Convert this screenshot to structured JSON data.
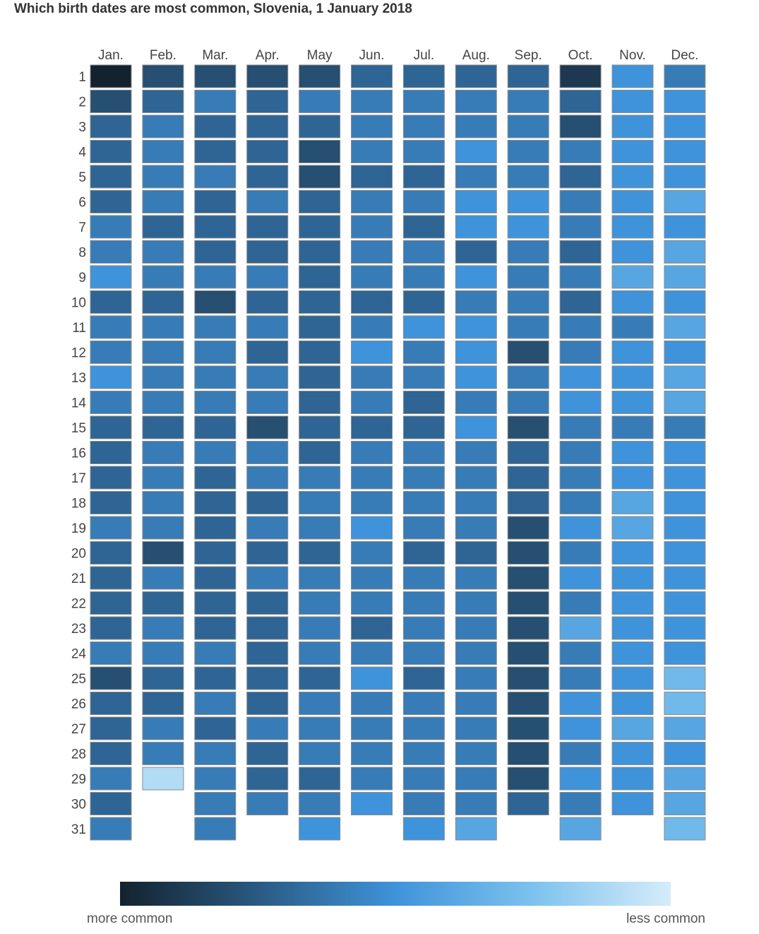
{
  "chart_data": {
    "type": "heatmap",
    "title": "Which birth dates are most common, Slovenia, 1 January 2018",
    "months": [
      "Jan.",
      "Feb.",
      "Mar.",
      "Apr.",
      "May",
      "Jun.",
      "Jul.",
      "Aug.",
      "Sep.",
      "Oct.",
      "Nov.",
      "Dec."
    ],
    "days": [
      "1",
      "2",
      "3",
      "4",
      "5",
      "6",
      "7",
      "8",
      "9",
      "10",
      "11",
      "12",
      "13",
      "14",
      "15",
      "16",
      "17",
      "18",
      "19",
      "20",
      "21",
      "22",
      "23",
      "24",
      "25",
      "26",
      "27",
      "28",
      "29",
      "30",
      "31"
    ],
    "scale_note": "relative commonness, 10 = most common, 0 = least common",
    "values": [
      [
        10,
        8,
        7,
        7,
        7,
        7,
        6,
        6,
        5,
        7,
        6,
        6,
        5,
        6,
        7,
        7,
        7,
        7,
        6,
        7,
        7,
        7,
        7,
        6,
        8,
        7,
        7,
        7,
        6,
        7,
        6
      ],
      [
        8,
        7,
        6,
        6,
        6,
        6,
        7,
        6,
        6,
        7,
        6,
        6,
        6,
        6,
        7,
        6,
        6,
        6,
        6,
        8,
        6,
        7,
        6,
        6,
        7,
        7,
        6,
        6,
        1,
        null,
        null
      ],
      [
        8,
        6,
        7,
        7,
        6,
        7,
        7,
        7,
        6,
        8,
        6,
        6,
        6,
        6,
        7,
        6,
        7,
        7,
        7,
        7,
        7,
        7,
        7,
        6,
        7,
        6,
        7,
        6,
        6,
        6,
        6
      ],
      [
        8,
        7,
        7,
        7,
        7,
        6,
        7,
        7,
        6,
        7,
        6,
        7,
        6,
        6,
        8,
        6,
        6,
        7,
        6,
        7,
        6,
        7,
        7,
        7,
        7,
        7,
        6,
        7,
        7,
        6,
        null
      ],
      [
        8,
        6,
        7,
        8,
        8,
        7,
        7,
        7,
        7,
        7,
        7,
        7,
        7,
        7,
        7,
        7,
        6,
        6,
        6,
        7,
        6,
        6,
        6,
        6,
        7,
        6,
        6,
        6,
        7,
        6,
        5
      ],
      [
        7,
        6,
        6,
        6,
        7,
        6,
        6,
        6,
        6,
        7,
        6,
        5,
        6,
        6,
        7,
        6,
        6,
        6,
        5,
        6,
        6,
        6,
        7,
        6,
        5,
        6,
        6,
        6,
        6,
        5,
        null
      ],
      [
        7,
        6,
        6,
        6,
        7,
        6,
        7,
        6,
        6,
        7,
        5,
        6,
        6,
        7,
        7,
        6,
        6,
        6,
        6,
        7,
        6,
        6,
        6,
        6,
        7,
        6,
        6,
        6,
        6,
        6,
        5
      ],
      [
        7,
        6,
        6,
        5,
        6,
        5,
        5,
        7,
        5,
        6,
        5,
        5,
        5,
        6,
        5,
        6,
        6,
        6,
        6,
        7,
        6,
        6,
        6,
        6,
        6,
        6,
        6,
        6,
        6,
        6,
        4
      ],
      [
        7,
        6,
        6,
        6,
        6,
        5,
        5,
        6,
        6,
        6,
        6,
        8,
        6,
        6,
        8,
        7,
        7,
        7,
        8,
        8,
        8,
        8,
        8,
        8,
        8,
        8,
        8,
        8,
        8,
        7,
        null
      ],
      [
        9,
        7,
        8,
        6,
        7,
        6,
        6,
        7,
        6,
        7,
        6,
        6,
        5,
        5,
        6,
        6,
        6,
        6,
        5,
        6,
        5,
        6,
        4,
        6,
        6,
        5,
        5,
        6,
        5,
        6,
        4
      ],
      [
        5,
        5,
        5,
        5,
        5,
        5,
        5,
        5,
        4,
        5,
        6,
        5,
        5,
        5,
        6,
        5,
        5,
        4,
        4,
        5,
        5,
        5,
        5,
        5,
        5,
        5,
        4,
        5,
        5,
        5,
        null
      ],
      [
        6,
        5,
        5,
        5,
        5,
        4,
        5,
        4,
        4,
        5,
        4,
        5,
        4,
        4,
        6,
        5,
        5,
        5,
        5,
        5,
        5,
        5,
        5,
        5,
        3,
        3,
        4,
        5,
        4,
        4,
        3
      ]
    ]
  },
  "legend": {
    "left_label": "more common",
    "right_label": "less common",
    "colors": [
      "#14222f",
      "#2a5a82",
      "#3f93da",
      "#7cc2ee",
      "#d6ecfa"
    ]
  }
}
